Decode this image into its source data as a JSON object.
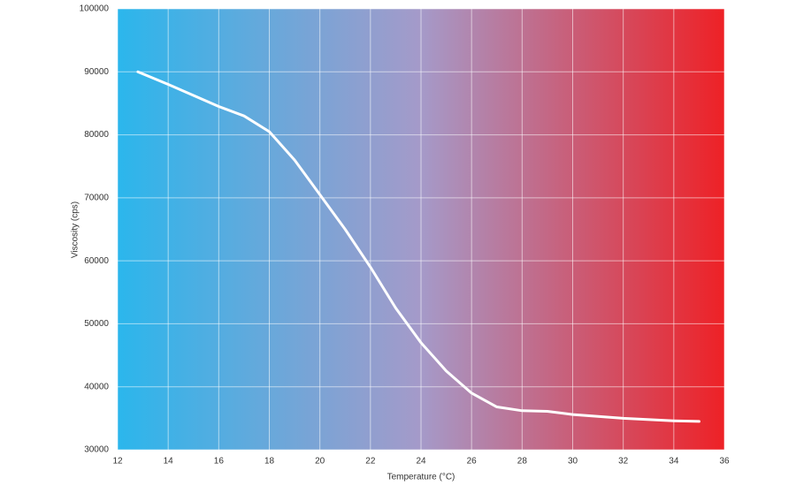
{
  "chart_data": {
    "type": "line",
    "x_label": "Temperature (°C)",
    "y_label": "Viscosity (cps)",
    "x": [
      12.8,
      14,
      16,
      17,
      18,
      19,
      20,
      21,
      22,
      23,
      24,
      25,
      26,
      27,
      28,
      29,
      30,
      32,
      34,
      35
    ],
    "series": [
      {
        "color": "#ffffff",
        "values": [
          90000,
          88000,
          84500,
          83000,
          80500,
          76000,
          70500,
          65000,
          59000,
          52500,
          47000,
          42500,
          39000,
          36800,
          36200,
          36100,
          35600,
          35000,
          34600,
          34500
        ]
      }
    ],
    "xlim": [
      12,
      36
    ],
    "ylim": [
      30000,
      100000
    ],
    "xticks": [
      12,
      14,
      16,
      18,
      20,
      22,
      24,
      26,
      28,
      30,
      32,
      34,
      36
    ],
    "yticks": [
      30000,
      40000,
      50000,
      60000,
      70000,
      80000,
      90000,
      100000
    ],
    "grid": true,
    "background_colors": [
      "#2bb6ec",
      "#a59ac9",
      "#ee2126"
    ]
  }
}
